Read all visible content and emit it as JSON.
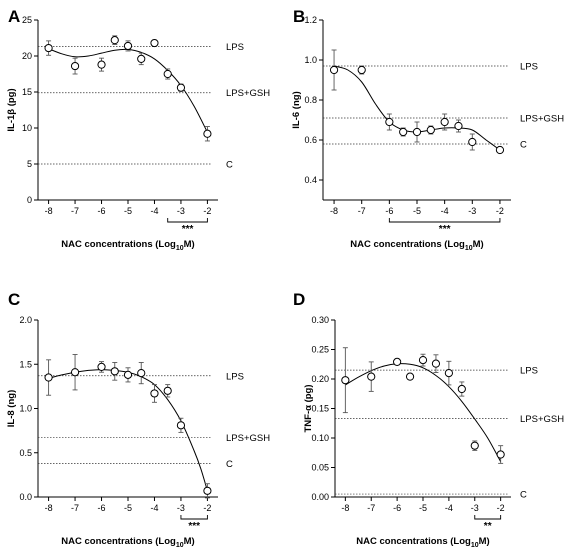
{
  "chart_data": [
    {
      "panel": "A",
      "type": "scatter",
      "xlabel": "NAC concentrations (Log10M)",
      "ylabel": "IL-1β (pg)",
      "xlim": [
        -8.4,
        -1.6
      ],
      "ylim": [
        0,
        25
      ],
      "x_ticks": [
        -8,
        -7,
        -6,
        -5,
        -4,
        -3,
        -2
      ],
      "y_ticks": [
        0,
        5,
        10,
        15,
        20,
        25
      ],
      "y_tick_labels": [
        "0",
        "5",
        "10",
        "15",
        "20",
        "25"
      ],
      "reference_lines": [
        {
          "label": "LPS",
          "y": 21.3
        },
        {
          "label": "LPS+GSH",
          "y": 14.9
        },
        {
          "label": "C",
          "y": 5.0
        }
      ],
      "points": [
        {
          "x": -8,
          "y": 21.1,
          "err": 1.0
        },
        {
          "x": -7,
          "y": 18.6,
          "err": 1.1
        },
        {
          "x": -6,
          "y": 18.8,
          "err": 0.9
        },
        {
          "x": -5.5,
          "y": 22.2,
          "err": 0.6
        },
        {
          "x": -5,
          "y": 21.4,
          "err": 0.7
        },
        {
          "x": -4.5,
          "y": 19.6,
          "err": 0.8
        },
        {
          "x": -4,
          "y": 21.8,
          "err": 0.4
        },
        {
          "x": -3.5,
          "y": 17.5,
          "err": 0.7
        },
        {
          "x": -3,
          "y": 15.6,
          "err": 0.5
        },
        {
          "x": -2,
          "y": 9.2,
          "err": 1.0
        }
      ],
      "fit_curve": [
        [
          -8,
          21.0
        ],
        [
          -7.5,
          20.3
        ],
        [
          -7,
          19.9
        ],
        [
          -6.5,
          20.0
        ],
        [
          -6,
          20.4
        ],
        [
          -5.5,
          20.8
        ],
        [
          -5,
          20.9
        ],
        [
          -4.5,
          20.5
        ],
        [
          -4,
          19.6
        ],
        [
          -3.5,
          18.0
        ],
        [
          -3,
          15.9
        ],
        [
          -2.5,
          13.0
        ],
        [
          -2,
          9.4
        ]
      ],
      "significance": {
        "label": "***",
        "x_from": -3.5,
        "x_to": -2
      }
    },
    {
      "panel": "B",
      "type": "scatter",
      "xlabel": "NAC concentrations (Log10M)",
      "ylabel": "IL-6 (ng)",
      "xlim": [
        -8.4,
        -1.6
      ],
      "ylim": [
        0.3,
        1.2
      ],
      "x_ticks": [
        -8,
        -7,
        -6,
        -5,
        -4,
        -3,
        -2
      ],
      "y_ticks": [
        0.4,
        0.6,
        0.8,
        1.0,
        1.2
      ],
      "y_tick_labels": [
        "0.4",
        "0.6",
        "0.8",
        "1.0",
        "1.2"
      ],
      "reference_lines": [
        {
          "label": "LPS",
          "y": 0.97
        },
        {
          "label": "LPS+GSH",
          "y": 0.71
        },
        {
          "label": "C",
          "y": 0.58
        }
      ],
      "points": [
        {
          "x": -8,
          "y": 0.95,
          "err": 0.1
        },
        {
          "x": -7,
          "y": 0.95,
          "err": 0.02
        },
        {
          "x": -6,
          "y": 0.69,
          "err": 0.04
        },
        {
          "x": -5.5,
          "y": 0.64,
          "err": 0.02
        },
        {
          "x": -5,
          "y": 0.64,
          "err": 0.05
        },
        {
          "x": -4.5,
          "y": 0.65,
          "err": 0.02
        },
        {
          "x": -4,
          "y": 0.69,
          "err": 0.04
        },
        {
          "x": -3.5,
          "y": 0.67,
          "err": 0.03
        },
        {
          "x": -3,
          "y": 0.59,
          "err": 0.04
        },
        {
          "x": -2,
          "y": 0.55,
          "err": 0.01
        }
      ],
      "fit_curve": [
        [
          -8,
          0.97
        ],
        [
          -7.5,
          0.95
        ],
        [
          -7,
          0.89
        ],
        [
          -6.5,
          0.78
        ],
        [
          -6,
          0.69
        ],
        [
          -5.5,
          0.65
        ],
        [
          -5,
          0.64
        ],
        [
          -4.5,
          0.65
        ],
        [
          -4,
          0.66
        ],
        [
          -3.5,
          0.66
        ],
        [
          -3,
          0.65
        ],
        [
          -2.5,
          0.6
        ],
        [
          -2,
          0.55
        ]
      ],
      "significance": {
        "label": "***",
        "x_from": -6,
        "x_to": -2
      }
    },
    {
      "panel": "C",
      "type": "scatter",
      "xlabel": "NAC concentrations (Log10M)",
      "ylabel": "IL-8 (ng)",
      "xlim": [
        -8.4,
        -1.6
      ],
      "ylim": [
        0,
        2.0
      ],
      "x_ticks": [
        -8,
        -7,
        -6,
        -5,
        -4,
        -3,
        -2
      ],
      "y_ticks": [
        0,
        0.5,
        1.0,
        1.5,
        2.0
      ],
      "y_tick_labels": [
        "0.0",
        "0.5",
        "1.0",
        "1.5",
        "2.0"
      ],
      "reference_lines": [
        {
          "label": "LPS",
          "y": 1.37
        },
        {
          "label": "LPS+GSH",
          "y": 0.67
        },
        {
          "label": "C",
          "y": 0.38
        }
      ],
      "points": [
        {
          "x": -8,
          "y": 1.35,
          "err": 0.2
        },
        {
          "x": -7,
          "y": 1.41,
          "err": 0.2
        },
        {
          "x": -6,
          "y": 1.47,
          "err": 0.06
        },
        {
          "x": -5.5,
          "y": 1.42,
          "err": 0.1
        },
        {
          "x": -5,
          "y": 1.38,
          "err": 0.08
        },
        {
          "x": -4.5,
          "y": 1.4,
          "err": 0.12
        },
        {
          "x": -4,
          "y": 1.17,
          "err": 0.1
        },
        {
          "x": -3.5,
          "y": 1.2,
          "err": 0.07
        },
        {
          "x": -3,
          "y": 0.81,
          "err": 0.08
        },
        {
          "x": -2,
          "y": 0.07,
          "err": 0.08
        }
      ],
      "fit_curve": [
        [
          -8,
          1.34
        ],
        [
          -7.5,
          1.38
        ],
        [
          -7,
          1.41
        ],
        [
          -6.5,
          1.43
        ],
        [
          -6,
          1.44
        ],
        [
          -5.5,
          1.43
        ],
        [
          -5,
          1.41
        ],
        [
          -4.5,
          1.36
        ],
        [
          -4,
          1.27
        ],
        [
          -3.5,
          1.1
        ],
        [
          -3,
          0.86
        ],
        [
          -2.5,
          0.52
        ],
        [
          -2.25,
          0.32
        ],
        [
          -2,
          0.07
        ]
      ],
      "significance": {
        "label": "***",
        "x_from": -3,
        "x_to": -2
      }
    },
    {
      "panel": "D",
      "type": "scatter",
      "xlabel": "NAC concentrations (Log10M)",
      "ylabel": "TNF-α (pg)",
      "xlim": [
        -8.4,
        -1.6
      ],
      "ylim": [
        0,
        0.3
      ],
      "x_ticks": [
        -8,
        -7,
        -6,
        -5,
        -4,
        -3,
        -2
      ],
      "y_ticks": [
        0,
        0.05,
        0.1,
        0.15,
        0.2,
        0.25,
        0.3
      ],
      "y_tick_labels": [
        "0.00",
        "0.05",
        "0.10",
        "0.15",
        "0.20",
        "0.25",
        "0.30"
      ],
      "reference_lines": [
        {
          "label": "LPS",
          "y": 0.215
        },
        {
          "label": "LPS+GSH",
          "y": 0.133
        },
        {
          "label": "C",
          "y": 0.005
        }
      ],
      "points": [
        {
          "x": -8,
          "y": 0.198,
          "err": 0.055
        },
        {
          "x": -7,
          "y": 0.204,
          "err": 0.025
        },
        {
          "x": -6,
          "y": 0.229,
          "err": 0.005
        },
        {
          "x": -5.5,
          "y": 0.204,
          "err": 0.004
        },
        {
          "x": -5,
          "y": 0.232,
          "err": 0.01
        },
        {
          "x": -4.5,
          "y": 0.226,
          "err": 0.015
        },
        {
          "x": -4,
          "y": 0.21,
          "err": 0.02
        },
        {
          "x": -3.5,
          "y": 0.183,
          "err": 0.012
        },
        {
          "x": -3,
          "y": 0.087,
          "err": 0.008
        },
        {
          "x": -2,
          "y": 0.072,
          "err": 0.015
        }
      ],
      "fit_curve": [
        [
          -8,
          0.19
        ],
        [
          -7.5,
          0.203
        ],
        [
          -7,
          0.214
        ],
        [
          -6.5,
          0.222
        ],
        [
          -6,
          0.226
        ],
        [
          -5.5,
          0.225
        ],
        [
          -5,
          0.219
        ],
        [
          -4.5,
          0.206
        ],
        [
          -4,
          0.187
        ],
        [
          -3.5,
          0.162
        ],
        [
          -3,
          0.132
        ],
        [
          -2.5,
          0.1
        ],
        [
          -2,
          0.06
        ]
      ],
      "significance": {
        "label": "**",
        "x_from": -3,
        "x_to": -2
      }
    }
  ]
}
